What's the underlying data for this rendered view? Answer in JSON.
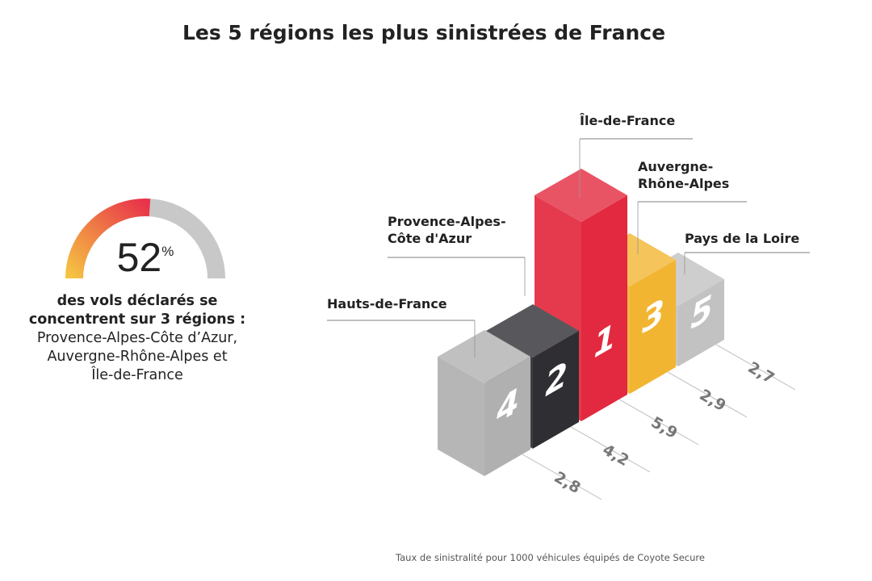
{
  "title": "Les 5 régions les plus sinistrées de France",
  "gauge": {
    "value": 52,
    "value_text": "52",
    "unit": "%",
    "line1": "des vols déclarés se",
    "line2": "concentrent sur 3 régions :",
    "line3": "Provence-Alpes-Côte d’Azur,",
    "line4": "Auvergne-Rhône-Alpes et",
    "line5": "Île-de-France",
    "colors": {
      "start": "#f5c242",
      "end": "#e8334a",
      "track": "#c8c8c8"
    }
  },
  "chart_data": {
    "type": "bar",
    "title": "Les 5 régions les plus sinistrées de France",
    "style": "3d-isometric",
    "categories": [
      "Hauts-de-France",
      "Provence-Alpes-Côte d'Azur",
      "Île-de-France",
      "Auvergne-Rhône-Alpes",
      "Pays de la Loire"
    ],
    "label_lines": [
      [
        "Hauts-de-France"
      ],
      [
        "Provence-Alpes-",
        "Côte d'Azur"
      ],
      [
        "Île-de-France"
      ],
      [
        "Auvergne-",
        "Rhône-Alpes"
      ],
      [
        "Pays de la Loire"
      ]
    ],
    "ranks": [
      "4",
      "2",
      "1",
      "3",
      "5"
    ],
    "values": [
      2.8,
      4.2,
      5.9,
      2.9,
      2.7
    ],
    "value_labels": [
      "2,8",
      "4,2",
      "5,9",
      "2,9",
      "2,7"
    ],
    "colors": [
      "#b0b0b0",
      "#2e2e33",
      "#e3293f",
      "#f2b532",
      "#c2c2c2"
    ],
    "note": "Taux de sinistralité pour 1000 véhicules équipés de Coyote Secure"
  }
}
